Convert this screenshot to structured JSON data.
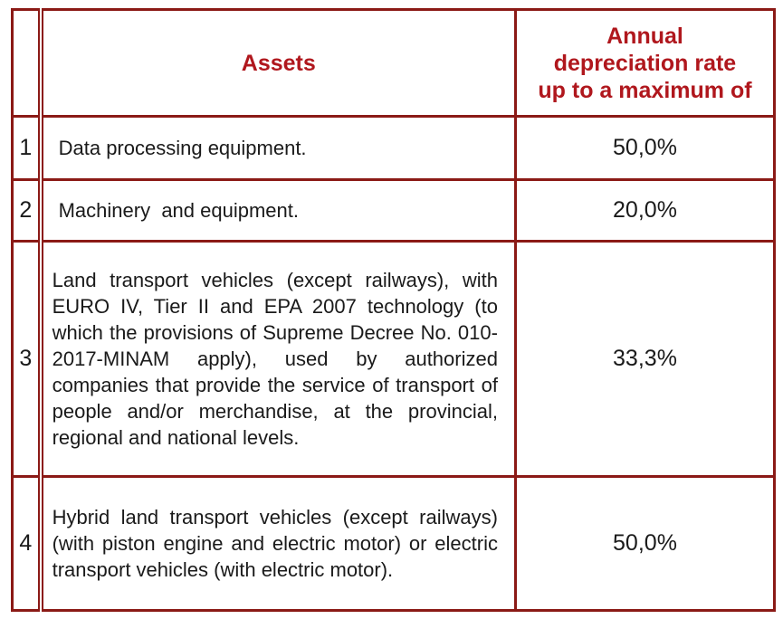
{
  "table": {
    "header": {
      "number": "",
      "assets": "Assets",
      "rate_lines": [
        "Annual",
        "depreciation rate",
        "up to a maximum of"
      ]
    },
    "rows": [
      {
        "number": "1",
        "asset": "Data processing equipment.",
        "rate": "50,0%"
      },
      {
        "number": "2",
        "asset": "Machinery  and equipment.",
        "rate": "20,0%"
      },
      {
        "number": "3",
        "asset": "Land transport vehicles (except railways), with EURO IV, Tier II and EPA 2007 technology (to which the provisions of Supreme Decree No. 010-2017-MINAM apply), used by authorized companies that provide the service of transport of people and/or merchandise, at the provincial, regional and national levels.",
        "rate": "33,3%"
      },
      {
        "number": "4",
        "asset": "Hybrid land transport vehicles (except railways) (with piston engine and electric motor) or electric transport vehicles (with electric motor).",
        "rate": "50,0%"
      }
    ]
  },
  "colors": {
    "border": "#8b1a16",
    "header_text": "#b0171d",
    "body_text": "#1a1a1a"
  }
}
